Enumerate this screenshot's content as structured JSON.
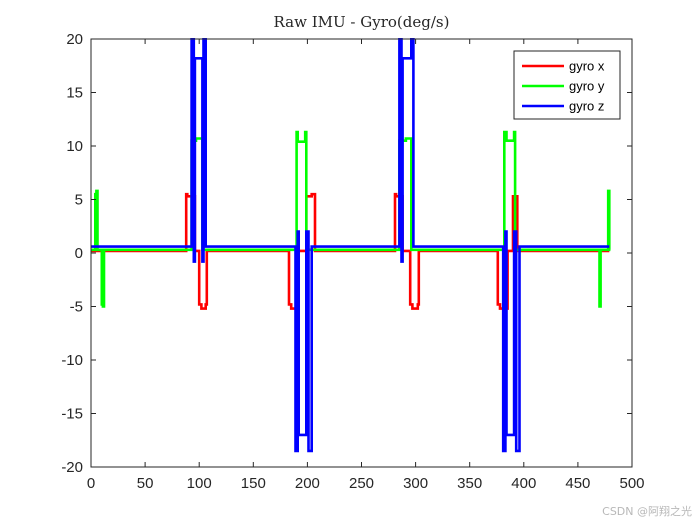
{
  "chart_data": {
    "type": "line",
    "title": "Raw IMU - Gyro(deg/s)",
    "xlabel": "",
    "ylabel": "",
    "xlim": [
      0,
      500
    ],
    "ylim": [
      -20,
      20
    ],
    "xticks": [
      0,
      50,
      100,
      150,
      200,
      250,
      300,
      350,
      400,
      450,
      500
    ],
    "yticks": [
      -20,
      -15,
      -10,
      -5,
      0,
      5,
      10,
      15,
      20
    ],
    "grid": false,
    "legend_position": "top-right",
    "series": [
      {
        "name": "gyro x",
        "color": "#ff0000",
        "x": [
          0,
          88,
          88,
          89,
          89,
          96,
          96,
          100,
          100,
          102,
          102,
          106,
          106,
          107,
          107,
          183,
          183,
          185,
          185,
          191,
          191,
          199,
          199,
          204,
          204,
          207,
          207,
          281,
          281,
          282,
          282,
          288,
          288,
          295,
          295,
          297,
          297,
          302,
          302,
          303,
          303,
          376,
          376,
          378,
          378,
          385,
          385,
          390,
          390,
          394,
          394,
          479
        ],
        "y": [
          0.2,
          0.2,
          5.5,
          5.5,
          5.3,
          5.3,
          0.2,
          0.2,
          -4.8,
          -4.8,
          -5.2,
          -5.2,
          -4.8,
          -4.8,
          0.2,
          0.2,
          -4.8,
          -4.8,
          -5.2,
          -5.2,
          0.2,
          0.2,
          5.3,
          5.3,
          5.5,
          5.5,
          0.2,
          0.2,
          5.5,
          5.5,
          5.3,
          5.3,
          0.2,
          0.2,
          -4.8,
          -4.8,
          -5.2,
          -5.2,
          -4.8,
          -4.8,
          0.2,
          0.2,
          -4.8,
          -4.8,
          -5.2,
          -5.2,
          0.2,
          0.2,
          5.3,
          5.3,
          0.2,
          0.2
        ]
      },
      {
        "name": "gyro y",
        "color": "#00ff00",
        "x": [
          0,
          4,
          4,
          5,
          5,
          6,
          6,
          10,
          10,
          11,
          11,
          12,
          12,
          93,
          93,
          97,
          97,
          103,
          103,
          190,
          190,
          191,
          191,
          198,
          198,
          199,
          199,
          285,
          285,
          291,
          291,
          296,
          296,
          382,
          382,
          384,
          384,
          391,
          391,
          392,
          392,
          470,
          470,
          471,
          471,
          478,
          478,
          479,
          479,
          480
        ],
        "y": [
          0.3,
          0.3,
          5.5,
          5.5,
          5.8,
          5.8,
          0.3,
          0.3,
          -4.8,
          -4.8,
          -5.0,
          -5.0,
          0.3,
          0.3,
          10.5,
          10.5,
          10.7,
          10.7,
          0.3,
          0.3,
          11.3,
          11.3,
          10.4,
          10.4,
          11.3,
          11.3,
          0.3,
          0.3,
          10.5,
          10.5,
          10.7,
          10.7,
          0.3,
          0.3,
          11.3,
          11.3,
          10.5,
          10.5,
          11.3,
          11.3,
          0.3,
          0.3,
          -5.0,
          -5.0,
          0.3,
          0.3,
          5.8,
          5.8,
          0.3,
          0.3
        ]
      },
      {
        "name": "gyro z",
        "color": "#0000ff",
        "x": [
          0,
          93,
          93,
          95,
          95,
          96,
          96,
          103,
          103,
          104,
          104,
          106,
          106,
          189,
          189,
          191,
          191,
          192,
          192,
          199,
          199,
          201,
          201,
          204,
          204,
          285,
          285,
          287,
          287,
          288,
          288,
          296,
          296,
          298,
          298,
          381,
          381,
          383,
          383,
          384,
          384,
          391,
          391,
          393,
          393,
          396,
          396,
          479
        ],
        "y": [
          0.6,
          0.6,
          20,
          20,
          -0.8,
          -0.8,
          18.2,
          18.2,
          -0.8,
          -0.8,
          20,
          20,
          0.6,
          0.6,
          -18.5,
          -18.5,
          2.0,
          2.0,
          -17.0,
          -17.0,
          2.0,
          2.0,
          -18.5,
          -18.5,
          0.6,
          0.6,
          20,
          20,
          -0.8,
          -0.8,
          18.2,
          18.2,
          20,
          20,
          0.6,
          0.6,
          -18.5,
          -18.5,
          2.0,
          2.0,
          -17.0,
          -17.0,
          2.0,
          2.0,
          -18.5,
          -18.5,
          0.6,
          0.6
        ]
      }
    ]
  },
  "watermark": "CSDN @阿翔之光"
}
